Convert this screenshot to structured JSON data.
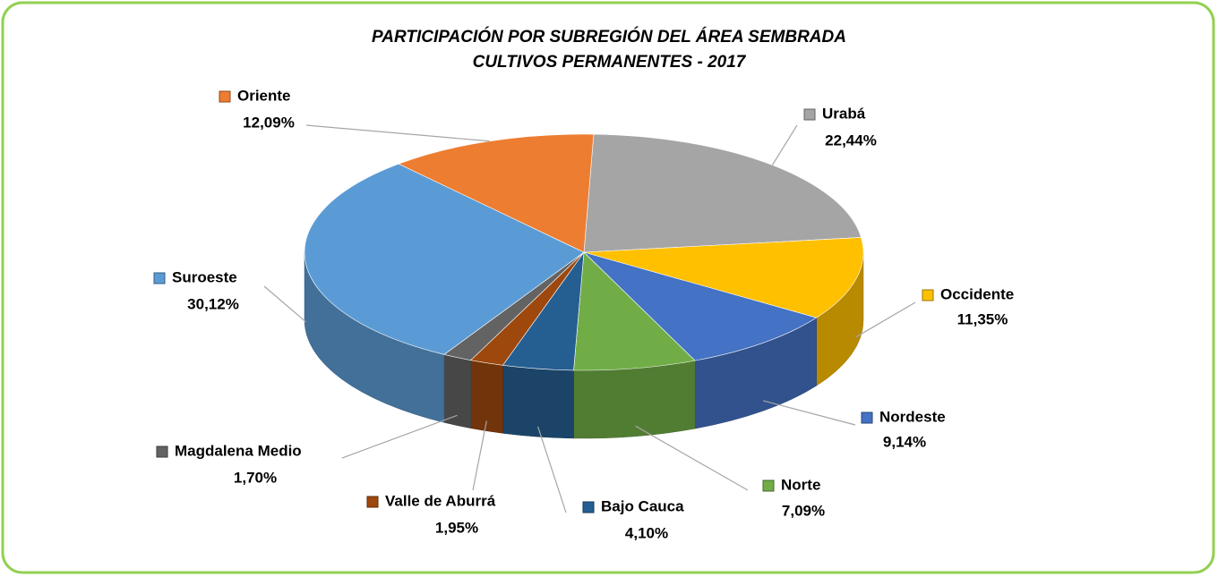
{
  "chart_data": {
    "type": "pie",
    "title": "PARTICIPACIÓN POR SUBREGIÓN DEL ÁREA SEMBRADA",
    "subtitle": "CULTIVOS PERMANENTES - 2017",
    "categories": [
      "Urabá",
      "Occidente",
      "Nordeste",
      "Norte",
      "Bajo Cauca",
      "Valle de Aburrá",
      "Magdalena Medio",
      "Suroeste",
      "Oriente"
    ],
    "values": [
      22.44,
      11.35,
      9.14,
      7.09,
      4.1,
      1.95,
      1.7,
      30.12,
      12.09
    ],
    "value_labels": [
      "22,44%",
      "11,35%",
      "9,14%",
      "7,09%",
      "4,10%",
      "1,95%",
      "1,70%",
      "30,12%",
      "12,09%"
    ],
    "colors": [
      "#a5a5a5",
      "#ffc000",
      "#4472c4",
      "#70ad47",
      "#255e91",
      "#9e480e",
      "#636363",
      "#5b9bd5",
      "#ed7d31"
    ]
  }
}
